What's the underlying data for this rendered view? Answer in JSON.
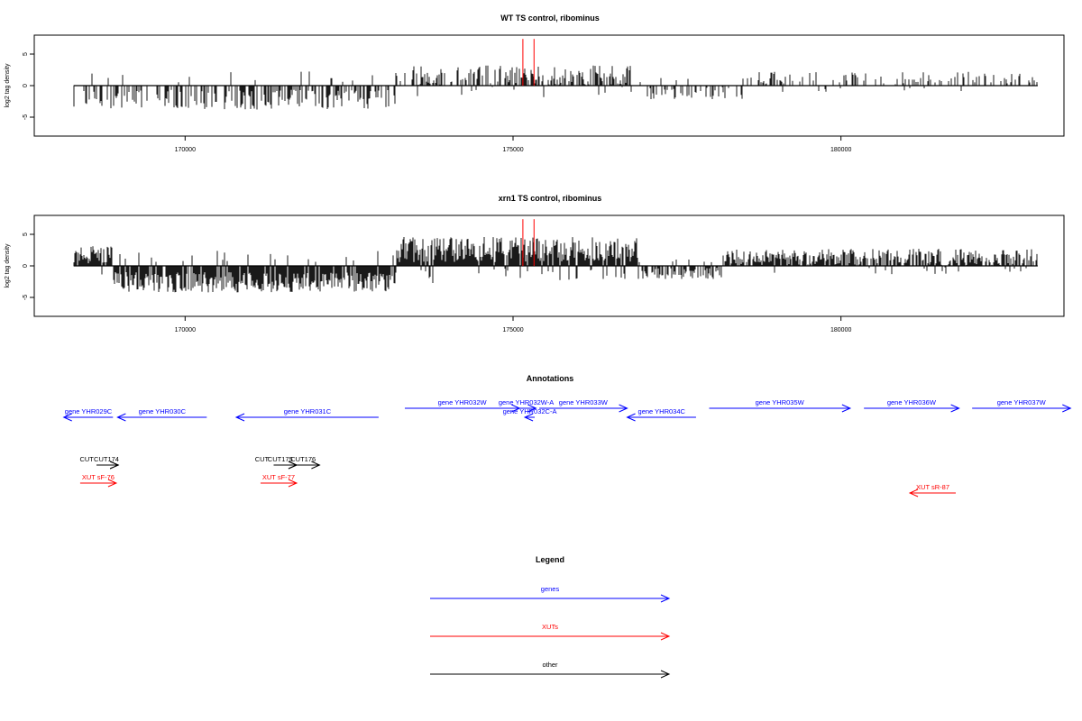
{
  "chart_data": [
    {
      "type": "bar",
      "title": "WT TS control, ribominus",
      "xlabel": "",
      "ylabel": "log2 tag density",
      "xlim": [
        167700,
        183400
      ],
      "ylim": [
        -8,
        8
      ],
      "x_ticks": [
        170000,
        175000,
        180000
      ],
      "y_ticks": [
        -5,
        0,
        5
      ],
      "x_tick_labels": [
        "170000",
        "175000",
        "180000"
      ],
      "y_tick_labels": [
        "-5",
        "0",
        "5"
      ],
      "highlight_color": "#ff0000",
      "bar_color": "#000000",
      "highlights": [
        {
          "x": 175150,
          "value": 7.4
        },
        {
          "x": 175320,
          "value": 7.4
        }
      ],
      "data_x_range": [
        168300,
        183000
      ],
      "series": [
        {
          "region": [
            168300,
            173200
          ],
          "mean": -2.2,
          "amp": 1.6,
          "density": 0.45
        },
        {
          "region": [
            173200,
            176800
          ],
          "mean": 1.6,
          "amp": 1.6,
          "density": 0.6
        },
        {
          "region": [
            176800,
            178500
          ],
          "mean": -1.2,
          "amp": 1.0,
          "density": 0.3
        },
        {
          "region": [
            178500,
            183000
          ],
          "mean": 1.2,
          "amp": 1.0,
          "density": 0.25
        }
      ]
    },
    {
      "type": "bar",
      "title": "xrn1 TS control, ribominus",
      "xlabel": "",
      "ylabel": "log2 tag density",
      "xlim": [
        167700,
        183400
      ],
      "ylim": [
        -8,
        8
      ],
      "x_ticks": [
        170000,
        175000,
        180000
      ],
      "y_ticks": [
        -5,
        0,
        5
      ],
      "x_tick_labels": [
        "170000",
        "175000",
        "180000"
      ],
      "y_tick_labels": [
        "-5",
        "0",
        "5"
      ],
      "highlight_color": "#ff0000",
      "bar_color": "#000000",
      "highlights": [
        {
          "x": 175150,
          "value": 7.4
        },
        {
          "x": 175320,
          "value": 7.4
        }
      ],
      "data_x_range": [
        168300,
        183000
      ],
      "series": [
        {
          "region": [
            168300,
            168900
          ],
          "mean": 1.8,
          "amp": 1.4,
          "density": 0.9
        },
        {
          "region": [
            168900,
            173200
          ],
          "mean": -2.6,
          "amp": 1.6,
          "density": 0.95
        },
        {
          "region": [
            173200,
            176900
          ],
          "mean": 2.6,
          "amp": 2.0,
          "density": 1.0
        },
        {
          "region": [
            176900,
            178200
          ],
          "mean": -1.2,
          "amp": 0.9,
          "density": 0.7
        },
        {
          "region": [
            178200,
            183000
          ],
          "mean": 1.4,
          "amp": 1.3,
          "density": 0.85
        }
      ]
    }
  ],
  "annotations": {
    "title": "Annotations",
    "colors": {
      "genes": "#0000ff",
      "XUTs": "#ff0000",
      "other": "#000000"
    },
    "features": [
      {
        "label": "gene YHR029C",
        "kind": "genes",
        "strand": "-",
        "start": 168150,
        "end": 168900,
        "row": 1
      },
      {
        "label": "gene YHR030C",
        "kind": "genes",
        "strand": "-",
        "start": 168970,
        "end": 170330,
        "row": 1
      },
      {
        "label": "gene YHR031C",
        "kind": "genes",
        "strand": "-",
        "start": 170780,
        "end": 172950,
        "row": 1
      },
      {
        "label": "gene YHR032W",
        "kind": "genes",
        "strand": "+",
        "start": 173350,
        "end": 175100,
        "row": 0
      },
      {
        "label": "gene YHR032W-A",
        "kind": "genes",
        "strand": "+",
        "start": 175050,
        "end": 175350,
        "row": 0
      },
      {
        "label": "gene YHR032C-A",
        "kind": "genes",
        "strand": "-",
        "start": 175180,
        "end": 175330,
        "row": 1
      },
      {
        "label": "gene YHR033W",
        "kind": "genes",
        "strand": "+",
        "start": 175400,
        "end": 176740,
        "row": 0
      },
      {
        "label": "gene YHR034C",
        "kind": "genes",
        "strand": "-",
        "start": 176740,
        "end": 177790,
        "row": 1
      },
      {
        "label": "gene YHR035W",
        "kind": "genes",
        "strand": "+",
        "start": 177990,
        "end": 180140,
        "row": 0
      },
      {
        "label": "gene YHR036W",
        "kind": "genes",
        "strand": "+",
        "start": 180350,
        "end": 181800,
        "row": 0
      },
      {
        "label": "gene YHR037W",
        "kind": "genes",
        "strand": "+",
        "start": 182000,
        "end": 183500,
        "row": 0
      },
      {
        "label": "CUT",
        "kind": "other",
        "strand": "+",
        "start": 168650,
        "end": 168980,
        "row": 2,
        "label_at": 168500
      },
      {
        "label": "CUT174",
        "kind": "other",
        "strand": "+",
        "start": 168650,
        "end": 168980,
        "row": 2,
        "label_at": 168800
      },
      {
        "label": "CUT",
        "kind": "other",
        "strand": "+",
        "start": 171350,
        "end": 171700,
        "row": 2,
        "label_at": 171170
      },
      {
        "label": "CUT175",
        "kind": "other",
        "strand": "+",
        "start": 171350,
        "end": 171700,
        "row": 2,
        "label_at": 171450
      },
      {
        "label": "CUT176",
        "kind": "other",
        "strand": "+",
        "start": 171600,
        "end": 172050,
        "row": 2,
        "label_at": 171800
      },
      {
        "label": "XUT sF-76",
        "kind": "XUTs",
        "strand": "+",
        "start": 168400,
        "end": 168950,
        "row": 3
      },
      {
        "label": "XUT sF-77",
        "kind": "XUTs",
        "strand": "+",
        "start": 171150,
        "end": 171700,
        "row": 3
      },
      {
        "label": "XUT sR-87",
        "kind": "XUTs",
        "strand": "-",
        "start": 181050,
        "end": 181750,
        "row": 4
      }
    ]
  },
  "legend": {
    "title": "Legend",
    "items": [
      {
        "label": "genes",
        "kind": "genes"
      },
      {
        "label": "XUTs",
        "kind": "XUTs"
      },
      {
        "label": "other",
        "kind": "other"
      }
    ]
  }
}
